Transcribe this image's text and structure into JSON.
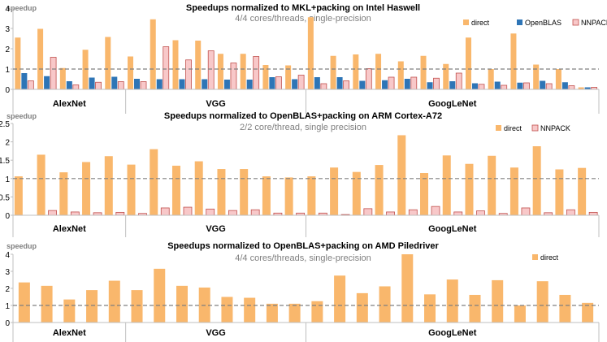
{
  "colors": {
    "direct": "#F9B76C",
    "openblas": "#2E75B6",
    "nnpack": "#F8C8C9",
    "nnpack_edge": "#C0504D",
    "baseline": "#808080"
  },
  "chart_data": [
    {
      "type": "bar",
      "title": "Speedups normalized to MKL+packing on Intel Haswell",
      "subtitle": "4/4 cores/threads, single-precision",
      "ylabel": "speedup",
      "ylim": [
        0,
        4
      ],
      "yticks": [
        "0",
        "1",
        "2",
        "3",
        "4"
      ],
      "baseline": 1,
      "grid": false,
      "legend_position": "top-right",
      "groups": [
        {
          "label": "AlexNet",
          "count": 5
        },
        {
          "label": "VGG",
          "count": 8
        },
        {
          "label": "GoogLeNet",
          "count": 13
        }
      ],
      "series": [
        {
          "name": "direct",
          "key": "direct",
          "values": [
            2.55,
            2.98,
            1.05,
            1.95,
            2.58,
            1.62,
            3.45,
            2.42,
            2.4,
            1.75,
            1.75,
            1.2,
            1.18,
            3.55,
            1.65,
            1.72,
            1.75,
            1.38,
            1.65,
            1.25,
            2.55,
            1.0,
            2.75,
            1.22,
            1.0,
            0.1
          ]
        },
        {
          "name": "OpenBLAS",
          "key": "openblas",
          "values": [
            0.8,
            0.65,
            0.4,
            0.58,
            0.62,
            0.52,
            0.5,
            0.5,
            0.5,
            0.48,
            0.48,
            0.6,
            0.5,
            0.6,
            0.6,
            0.42,
            0.45,
            0.52,
            0.35,
            0.4,
            0.3,
            0.38,
            0.33,
            0.42,
            0.35,
            0.1
          ]
        },
        {
          "name": "NNPACK",
          "key": "nnpack",
          "values": [
            0.42,
            1.58,
            0.22,
            0.35,
            0.38,
            0.38,
            2.1,
            1.45,
            1.9,
            1.3,
            1.62,
            0.62,
            0.7,
            0.28,
            0.42,
            1.02,
            0.6,
            0.6,
            0.55,
            0.8,
            0.25,
            0.2,
            0.32,
            0.28,
            0.18,
            0.1
          ]
        }
      ]
    },
    {
      "type": "bar",
      "title": "Speedups normalized to OpenBLAS+packing on ARM Cortex-A72",
      "subtitle": "2/2 core/thread,  single precision",
      "ylabel": "speedup",
      "ylim": [
        0,
        2.5
      ],
      "yticks": [
        "0",
        "0.5",
        "1",
        "1.5",
        "2",
        "2.5"
      ],
      "baseline": 1,
      "grid": false,
      "legend_position": "top-right",
      "groups": [
        {
          "label": "AlexNet",
          "count": 5
        },
        {
          "label": "VGG",
          "count": 8
        },
        {
          "label": "GoogLeNet",
          "count": 13
        }
      ],
      "series": [
        {
          "name": "direct",
          "key": "direct",
          "values": [
            1.06,
            1.65,
            1.17,
            1.45,
            1.61,
            1.38,
            1.8,
            1.35,
            1.47,
            1.26,
            1.26,
            1.06,
            1.03,
            1.06,
            1.3,
            1.18,
            1.37,
            2.18,
            1.15,
            1.63,
            1.4,
            1.62,
            1.3,
            1.88,
            1.25,
            1.29
          ]
        },
        {
          "name": "NNPACK",
          "key": "nnpack",
          "values": [
            0.0,
            0.13,
            0.09,
            0.07,
            0.08,
            0.05,
            0.2,
            0.22,
            0.17,
            0.13,
            0.15,
            0.06,
            0.06,
            0.06,
            0.02,
            0.18,
            0.09,
            0.15,
            0.24,
            0.09,
            0.12,
            0.05,
            0.2,
            0.07,
            0.15,
            0.08
          ]
        }
      ]
    },
    {
      "type": "bar",
      "title": "Speedups normalized to OpenBLAS+packing on AMD Piledriver",
      "subtitle": "4/4 cores/threads, single-precision",
      "ylabel": "speedup",
      "ylim": [
        0,
        4
      ],
      "yticks": [
        "0",
        "1",
        "2",
        "3",
        "4"
      ],
      "baseline": 1,
      "grid": false,
      "legend_position": "top-right",
      "groups": [
        {
          "label": "AlexNet",
          "count": 5
        },
        {
          "label": "VGG",
          "count": 8
        },
        {
          "label": "GoogLeNet",
          "count": 13
        }
      ],
      "series": [
        {
          "name": "direct",
          "key": "direct",
          "values": [
            2.35,
            2.15,
            1.35,
            1.9,
            2.45,
            1.9,
            3.15,
            2.15,
            2.05,
            1.5,
            1.45,
            1.1,
            1.1,
            1.25,
            2.75,
            1.72,
            2.12,
            4.05,
            1.65,
            2.52,
            1.62,
            2.48,
            1.0,
            2.42,
            1.62,
            1.15
          ]
        }
      ]
    }
  ]
}
